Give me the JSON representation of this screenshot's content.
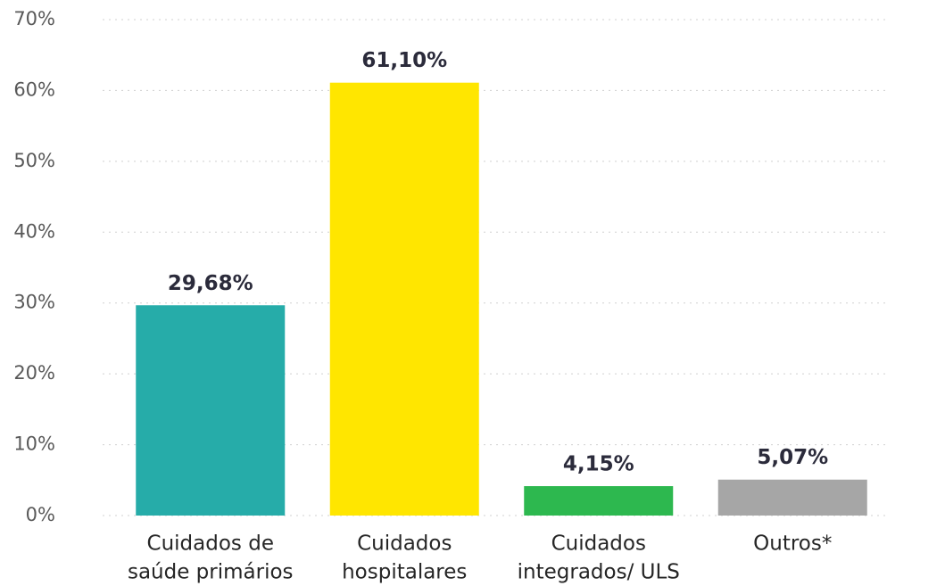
{
  "chart_data": {
    "type": "bar",
    "categories": [
      [
        "Cuidados de",
        "saúde primários"
      ],
      [
        "Cuidados",
        "hospitalares"
      ],
      [
        "Cuidados",
        "integrados/ ULS"
      ],
      [
        "Outros*"
      ]
    ],
    "values": [
      29.68,
      61.1,
      4.15,
      5.07
    ],
    "value_labels": [
      "29,68%",
      "61,10%",
      "4,15%",
      "5,07%"
    ],
    "colors": [
      "#26aca9",
      "#ffe600",
      "#2db84f",
      "#a6a6a6"
    ],
    "ylim": [
      0,
      70
    ],
    "yticks": [
      {
        "value": 0,
        "label": "0%"
      },
      {
        "value": 10,
        "label": "10%"
      },
      {
        "value": 20,
        "label": "20%"
      },
      {
        "value": 30,
        "label": "30%"
      },
      {
        "value": 40,
        "label": "40%"
      },
      {
        "value": 50,
        "label": "50%"
      },
      {
        "value": 60,
        "label": "60%"
      },
      {
        "value": 70,
        "label": "70%"
      }
    ],
    "grid": true
  }
}
